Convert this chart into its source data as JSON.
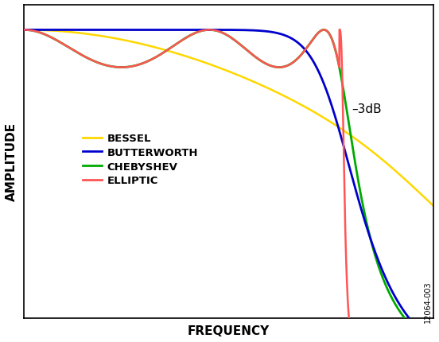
{
  "xlabel": "FREQUENCY",
  "ylabel": "AMPLITUDE",
  "annotation": "–3dB",
  "watermark": "12064-003",
  "legend_labels": [
    "BESSEL",
    "BUTTERWORTH",
    "CHEBYSHEV",
    "ELLIPTIC"
  ],
  "legend_colors": [
    "#FFD700",
    "#0000CC",
    "#00AA00",
    "#FF5555"
  ],
  "background_color": "#FFFFFF",
  "xlim": [
    0,
    1
  ],
  "ylim": [
    0,
    1
  ]
}
